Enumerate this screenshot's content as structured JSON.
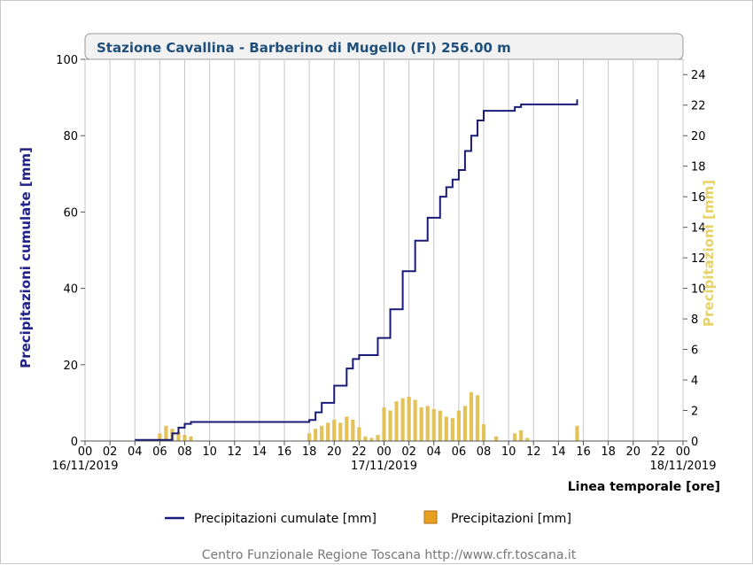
{
  "chart_data": {
    "type": "line",
    "title": "Stazione Cavallina - Barberino di Mugello (FI) 256.00 m",
    "xlabel": "Linea temporale [ore]",
    "ylabel_left": "Precipitazioni cumulate [mm]",
    "ylabel_right": "Precipitazioni [mm]",
    "ylim_left": [
      0,
      100
    ],
    "ylim_right": [
      0,
      25
    ],
    "y_ticks_left": [
      "0",
      "20",
      "40",
      "60",
      "80",
      "100"
    ],
    "y_ticks_right": [
      "0",
      "2",
      "4",
      "6",
      "8",
      "10",
      "12",
      "14",
      "16",
      "18",
      "20",
      "22",
      "24"
    ],
    "xlim_hours": [
      0,
      48
    ],
    "x_ticks": [
      "00",
      "02",
      "04",
      "06",
      "08",
      "10",
      "12",
      "14",
      "16",
      "18",
      "20",
      "22",
      "00",
      "02",
      "04",
      "06",
      "08",
      "10",
      "12",
      "14",
      "16",
      "18",
      "20",
      "22",
      "00"
    ],
    "date_labels": [
      {
        "hour": 0,
        "text": "16/11/2019"
      },
      {
        "hour": 24,
        "text": "17/11/2019"
      },
      {
        "hour": 48,
        "text": "18/11/2019"
      }
    ],
    "grid": true,
    "legend_position": "bottom",
    "series": [
      {
        "name": "Precipitazioni cumulate [mm]",
        "type": "line",
        "axis": "left",
        "color": "#1a1a7a",
        "x": [
          0,
          4.0,
          6.5,
          7.0,
          7.5,
          8.0,
          8.5,
          9.0,
          17.0,
          18.0,
          18.5,
          19.0,
          20.0,
          21.0,
          21.5,
          22.0,
          22.5,
          23.0,
          23.5,
          24.5,
          25.5,
          26.5,
          27.5,
          28.5,
          29.0,
          29.5,
          30.0,
          30.5,
          31.0,
          31.5,
          32.0,
          33.0,
          33.5,
          34.0,
          34.5,
          35.0,
          36.5,
          37.5,
          38.5,
          39.5
        ],
        "y": [
          null,
          0.3,
          0.3,
          2.0,
          3.5,
          4.5,
          5.0,
          5.0,
          5.0,
          5.5,
          7.5,
          10.0,
          14.5,
          19.0,
          21.5,
          22.5,
          22.5,
          22.5,
          27.0,
          34.5,
          44.5,
          52.5,
          58.5,
          64.0,
          66.5,
          68.5,
          71.0,
          76.0,
          80.0,
          84.0,
          86.5,
          86.5,
          86.5,
          86.5,
          87.5,
          88.2,
          88.2,
          88.2,
          88.2,
          89.5
        ]
      },
      {
        "name": "Precipitazioni [mm]",
        "type": "bar",
        "axis": "right",
        "color": "#e4c25a",
        "x": [
          6.0,
          6.5,
          7.0,
          7.5,
          8.0,
          8.5,
          18.0,
          18.5,
          19.0,
          19.5,
          20.0,
          20.5,
          21.0,
          21.5,
          22.0,
          22.5,
          23.0,
          23.5,
          24.0,
          24.5,
          25.0,
          25.5,
          26.0,
          26.5,
          27.0,
          27.5,
          28.0,
          28.5,
          29.0,
          29.5,
          30.0,
          30.5,
          31.0,
          31.5,
          32.0,
          33.0,
          34.5,
          35.0,
          35.5,
          39.5
        ],
        "y": [
          0.5,
          1.0,
          0.8,
          0.6,
          0.4,
          0.3,
          0.5,
          0.8,
          1.0,
          1.2,
          1.4,
          1.2,
          1.6,
          1.4,
          0.9,
          0.3,
          0.2,
          0.4,
          2.2,
          2.0,
          2.6,
          2.8,
          2.9,
          2.7,
          2.2,
          2.3,
          2.1,
          2.0,
          1.6,
          1.5,
          2.0,
          2.3,
          3.2,
          3.0,
          1.1,
          0.3,
          0.5,
          0.7,
          0.2,
          1.0
        ]
      }
    ]
  },
  "legend": {
    "line_label": "Precipitazioni cumulate [mm]",
    "bar_label": "Precipitazioni [mm]"
  },
  "footer": "Centro Funzionale Regione Toscana http://www.cfr.toscana.it",
  "colors": {
    "line": "#1a1a7a",
    "bar": "#e4c25a",
    "left_axis_label": "#22228a",
    "right_axis_label": "#e8d266",
    "title": "#1f4f7a"
  }
}
